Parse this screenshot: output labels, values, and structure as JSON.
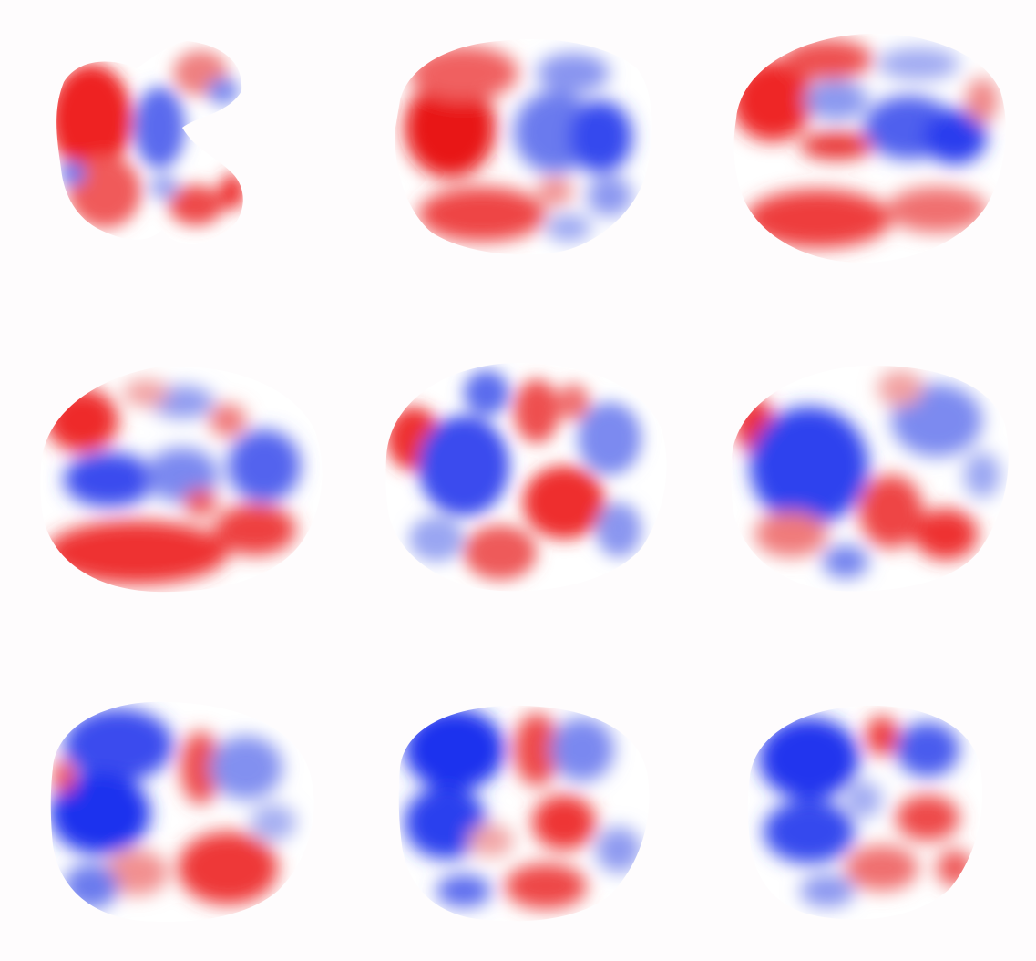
{
  "figure": {
    "rows": 3,
    "columns": 3,
    "colormap": {
      "negative": "#0a14ee",
      "neutral": "#ffffff",
      "positive": "#ee0a0a"
    },
    "background": "#fefcfd",
    "panels": [
      {
        "id": "slice-1",
        "red_fraction": 0.55
      },
      {
        "id": "slice-2",
        "red_fraction": 0.5
      },
      {
        "id": "slice-3",
        "red_fraction": 0.5
      },
      {
        "id": "slice-4",
        "red_fraction": 0.45
      },
      {
        "id": "slice-5",
        "red_fraction": 0.45
      },
      {
        "id": "slice-6",
        "red_fraction": 0.4
      },
      {
        "id": "slice-7",
        "red_fraction": 0.38
      },
      {
        "id": "slice-8",
        "red_fraction": 0.38
      },
      {
        "id": "slice-9",
        "red_fraction": 0.35
      }
    ]
  }
}
